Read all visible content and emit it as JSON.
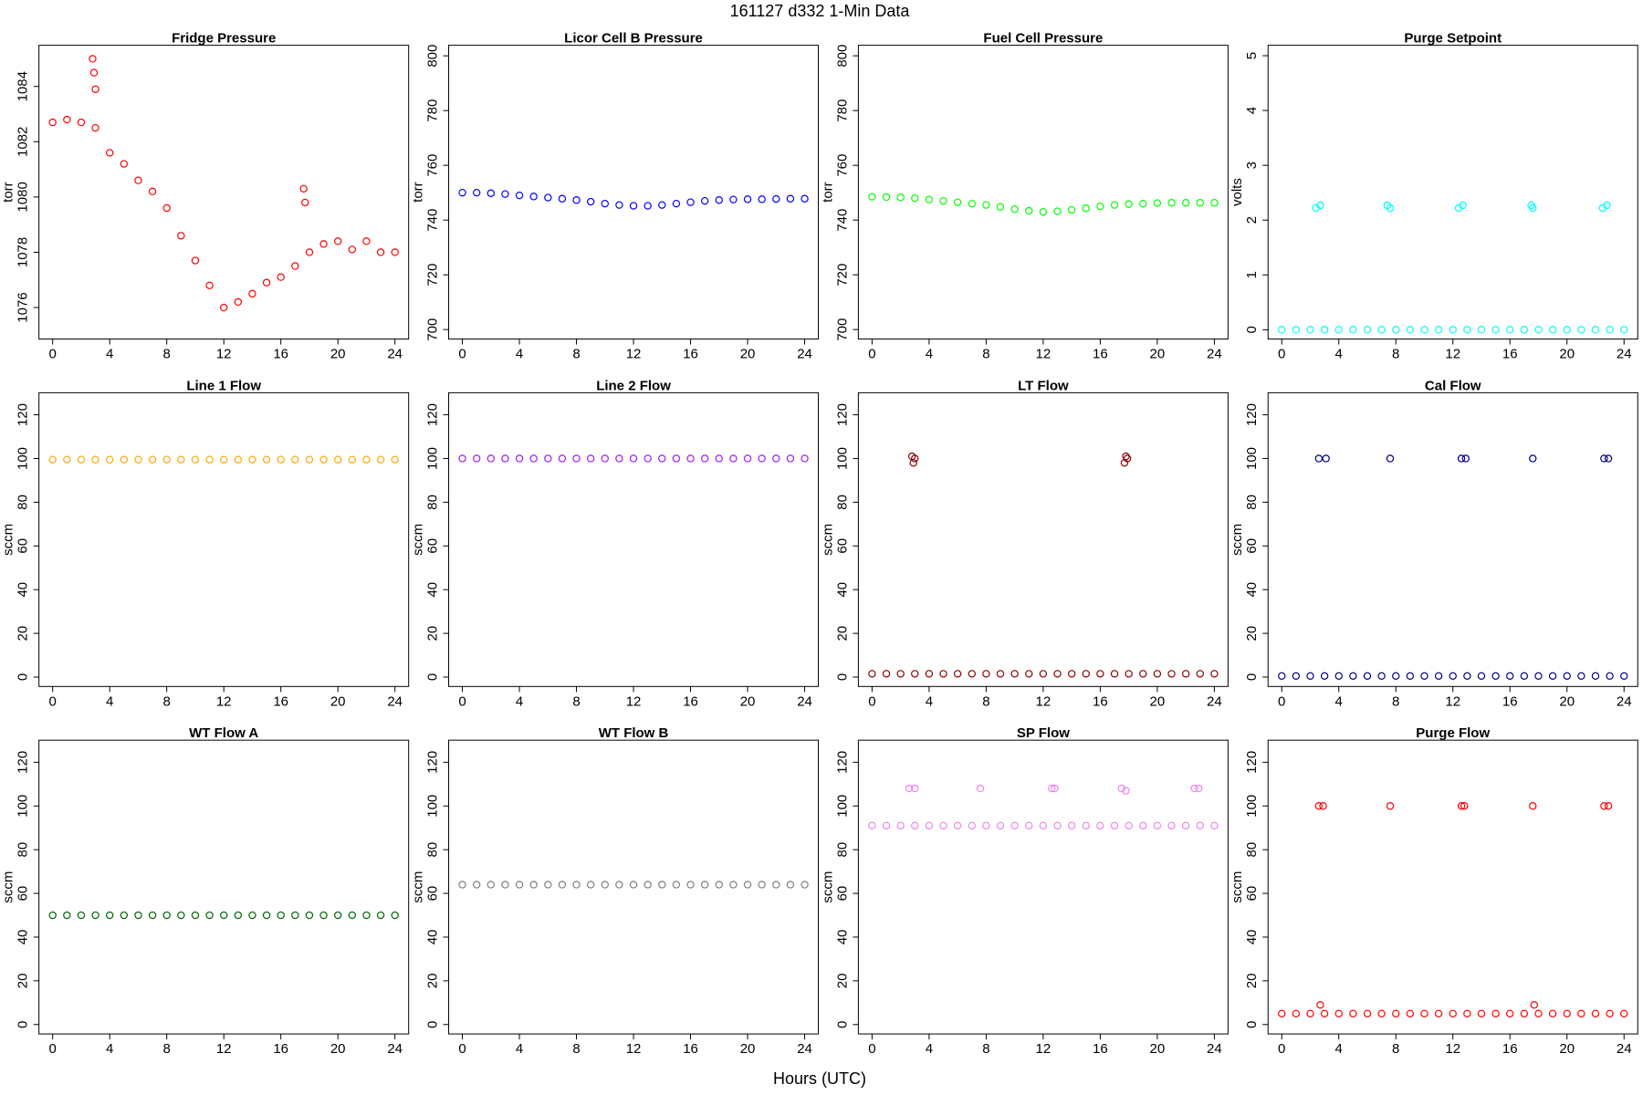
{
  "title": "161127   d332   1-Min Data",
  "xlabel": "Hours (UTC)",
  "chart_data": [
    {
      "type": "scatter",
      "title": "Fridge Pressure",
      "ylabel": "torr",
      "color": "#ff0000",
      "x": [
        0,
        1,
        2,
        3,
        4,
        5,
        6,
        7,
        8,
        9,
        10,
        11,
        12,
        13,
        14,
        15,
        16,
        17,
        18,
        19,
        20,
        21,
        22,
        23,
        24,
        2.8,
        2.9,
        3.0,
        17.6,
        17.7
      ],
      "values": [
        1082.7,
        1082.8,
        1082.7,
        1082.5,
        1081.6,
        1081.2,
        1080.6,
        1080.2,
        1079.6,
        1078.6,
        1077.7,
        1076.8,
        1076.0,
        1076.2,
        1076.5,
        1076.9,
        1077.1,
        1077.5,
        1078.0,
        1078.3,
        1078.4,
        1078.1,
        1078.4,
        1078.0,
        1078.0,
        1085.0,
        1084.5,
        1083.9,
        1080.3,
        1079.8
      ],
      "xlim": [
        -0.96,
        24.96
      ],
      "xticks": [
        0,
        4,
        8,
        12,
        16,
        20,
        24
      ],
      "ylim": [
        1074.86,
        1085.49
      ],
      "yticks": [
        1076,
        1078,
        1080,
        1082,
        1084
      ]
    },
    {
      "type": "scatter",
      "title": "Licor Cell B Pressure",
      "ylabel": "torr",
      "color": "#0000ff",
      "x": [
        0,
        1,
        2,
        3,
        4,
        5,
        6,
        7,
        8,
        9,
        10,
        11,
        12,
        13,
        14,
        15,
        16,
        17,
        18,
        19,
        20,
        21,
        22,
        23,
        24
      ],
      "values": [
        750,
        750,
        749.8,
        749.5,
        749,
        748.6,
        748.2,
        747.8,
        747.3,
        746.7,
        746,
        745.5,
        745.2,
        745.2,
        745.5,
        746,
        746.5,
        747,
        747.3,
        747.5,
        747.6,
        747.6,
        747.7,
        747.8,
        747.8
      ],
      "xlim": [
        -0.96,
        24.96
      ],
      "xticks": [
        0,
        4,
        8,
        12,
        16,
        20,
        24
      ],
      "ylim": [
        696.54,
        803.85
      ],
      "yticks": [
        700,
        720,
        740,
        760,
        780,
        800
      ]
    },
    {
      "type": "scatter",
      "title": "Fuel Cell Pressure",
      "ylabel": "torr",
      "color": "#00ff00",
      "x": [
        0,
        1,
        2,
        3,
        4,
        5,
        6,
        7,
        8,
        9,
        10,
        11,
        12,
        13,
        14,
        15,
        16,
        17,
        18,
        19,
        20,
        21,
        22,
        23,
        24
      ],
      "values": [
        748.5,
        748.4,
        748.3,
        748,
        747.5,
        747,
        746.5,
        746,
        745.5,
        744.8,
        744,
        743.4,
        743,
        743.2,
        743.7,
        744.3,
        745,
        745.5,
        745.8,
        746,
        746.2,
        746.3,
        746.3,
        746.3,
        746.3
      ],
      "xlim": [
        -0.96,
        24.96
      ],
      "xticks": [
        0,
        4,
        8,
        12,
        16,
        20,
        24
      ],
      "ylim": [
        696.54,
        803.85
      ],
      "yticks": [
        700,
        720,
        740,
        760,
        780,
        800
      ]
    },
    {
      "type": "scatter",
      "title": "Purge Setpoint",
      "ylabel": "volts",
      "color": "#00ffff",
      "x": [
        0,
        1,
        2,
        3,
        4,
        5,
        6,
        7,
        8,
        9,
        10,
        11,
        12,
        13,
        14,
        15,
        16,
        17,
        18,
        19,
        20,
        21,
        22,
        23,
        24,
        2.4,
        2.7,
        7.4,
        7.6,
        12.4,
        12.7,
        17.5,
        17.6,
        22.5,
        22.8
      ],
      "values": [
        0,
        0,
        0,
        0,
        0,
        0,
        0,
        0,
        0,
        0,
        0,
        0,
        0,
        0,
        0,
        0,
        0,
        0,
        0,
        0,
        0,
        0,
        0,
        0,
        0,
        2.22,
        2.27,
        2.27,
        2.22,
        2.22,
        2.27,
        2.27,
        2.22,
        2.22,
        2.27
      ],
      "xlim": [
        -0.96,
        24.96
      ],
      "xticks": [
        0,
        4,
        8,
        12,
        16,
        20,
        24
      ],
      "ylim": [
        -0.17,
        5.19
      ],
      "yticks": [
        0,
        1,
        2,
        3,
        4,
        5
      ]
    },
    {
      "type": "scatter",
      "title": "Line 1 Flow",
      "ylabel": "sccm",
      "color": "#ffa500",
      "x": [
        0,
        1,
        2,
        3,
        4,
        5,
        6,
        7,
        8,
        9,
        10,
        11,
        12,
        13,
        14,
        15,
        16,
        17,
        18,
        19,
        20,
        21,
        22,
        23,
        24
      ],
      "values": [
        99.5,
        99.5,
        99.5,
        99.5,
        99.5,
        99.5,
        99.5,
        99.5,
        99.5,
        99.5,
        99.5,
        99.5,
        99.5,
        99.5,
        99.5,
        99.5,
        99.5,
        99.5,
        99.5,
        99.5,
        99.5,
        99.5,
        99.5,
        99.5,
        99.5
      ],
      "xlim": [
        -0.96,
        24.96
      ],
      "xticks": [
        0,
        4,
        8,
        12,
        16,
        20,
        24
      ],
      "ylim": [
        -4.3,
        130.1
      ],
      "yticks": [
        0,
        20,
        40,
        60,
        80,
        100,
        120
      ]
    },
    {
      "type": "scatter",
      "title": "Line 2 Flow",
      "ylabel": "sccm",
      "color": "#a020f0",
      "x": [
        0,
        1,
        2,
        3,
        4,
        5,
        6,
        7,
        8,
        9,
        10,
        11,
        12,
        13,
        14,
        15,
        16,
        17,
        18,
        19,
        20,
        21,
        22,
        23,
        24
      ],
      "values": [
        100,
        100,
        100,
        100,
        100,
        100,
        100,
        100,
        100,
        100,
        100,
        100,
        100,
        100,
        100,
        100,
        100,
        100,
        100,
        100,
        100,
        100,
        100,
        100,
        100
      ],
      "xlim": [
        -0.96,
        24.96
      ],
      "xticks": [
        0,
        4,
        8,
        12,
        16,
        20,
        24
      ],
      "ylim": [
        -4.3,
        130.1
      ],
      "yticks": [
        0,
        20,
        40,
        60,
        80,
        100,
        120
      ]
    },
    {
      "type": "scatter",
      "title": "LT Flow",
      "ylabel": "sccm",
      "color": "#8b0000",
      "x": [
        0,
        1,
        2,
        3,
        4,
        5,
        6,
        7,
        8,
        9,
        10,
        11,
        12,
        13,
        14,
        15,
        16,
        17,
        18,
        19,
        20,
        21,
        22,
        23,
        24,
        2.8,
        2.9,
        3.0,
        17.7,
        17.8,
        17.9
      ],
      "values": [
        1.5,
        1.5,
        1.5,
        1.5,
        1.5,
        1.5,
        1.5,
        1.5,
        1.5,
        1.5,
        1.5,
        1.5,
        1.5,
        1.5,
        1.5,
        1.5,
        1.5,
        1.5,
        1.5,
        1.5,
        1.5,
        1.5,
        1.5,
        1.5,
        1.5,
        101,
        98,
        100,
        98,
        101,
        100
      ],
      "xlim": [
        -0.96,
        24.96
      ],
      "xticks": [
        0,
        4,
        8,
        12,
        16,
        20,
        24
      ],
      "ylim": [
        -4.3,
        130.1
      ],
      "yticks": [
        0,
        20,
        40,
        60,
        80,
        100,
        120
      ]
    },
    {
      "type": "scatter",
      "title": "Cal Flow",
      "ylabel": "sccm",
      "color": "#000080",
      "x": [
        0,
        1,
        2,
        3,
        4,
        5,
        6,
        7,
        8,
        9,
        10,
        11,
        12,
        13,
        14,
        15,
        16,
        17,
        18,
        19,
        20,
        21,
        22,
        23,
        24,
        2.6,
        3.1,
        7.6,
        12.6,
        12.9,
        17.6,
        22.6,
        22.9
      ],
      "values": [
        0.5,
        0.5,
        0.5,
        0.5,
        0.5,
        0.5,
        0.5,
        0.5,
        0.5,
        0.5,
        0.5,
        0.5,
        0.5,
        0.5,
        0.5,
        0.5,
        0.5,
        0.5,
        0.5,
        0.5,
        0.5,
        0.5,
        0.5,
        0.5,
        0.5,
        100,
        100,
        100,
        100,
        100,
        100,
        100,
        100
      ],
      "xlim": [
        -0.96,
        24.96
      ],
      "xticks": [
        0,
        4,
        8,
        12,
        16,
        20,
        24
      ],
      "ylim": [
        -4.3,
        130.1
      ],
      "yticks": [
        0,
        20,
        40,
        60,
        80,
        100,
        120
      ]
    },
    {
      "type": "scatter",
      "title": "WT Flow A",
      "ylabel": "sccm",
      "color": "#006400",
      "x": [
        0,
        1,
        2,
        3,
        4,
        5,
        6,
        7,
        8,
        9,
        10,
        11,
        12,
        13,
        14,
        15,
        16,
        17,
        18,
        19,
        20,
        21,
        22,
        23,
        24
      ],
      "values": [
        50,
        50,
        50,
        50,
        50,
        50,
        50,
        50,
        50,
        50,
        50,
        50,
        50,
        50,
        50,
        50,
        50,
        50,
        50,
        50,
        50,
        50,
        50,
        50,
        50
      ],
      "xlim": [
        -0.96,
        24.96
      ],
      "xticks": [
        0,
        4,
        8,
        12,
        16,
        20,
        24
      ],
      "ylim": [
        -4.3,
        130.1
      ],
      "yticks": [
        0,
        20,
        40,
        60,
        80,
        100,
        120
      ]
    },
    {
      "type": "scatter",
      "title": "WT Flow B",
      "ylabel": "sccm",
      "color": "#808080",
      "x": [
        0,
        1,
        2,
        3,
        4,
        5,
        6,
        7,
        8,
        9,
        10,
        11,
        12,
        13,
        14,
        15,
        16,
        17,
        18,
        19,
        20,
        21,
        22,
        23,
        24
      ],
      "values": [
        64,
        64,
        64,
        64,
        64,
        64,
        64,
        64,
        64,
        64,
        64,
        64,
        64,
        64,
        64,
        64,
        64,
        64,
        64,
        64,
        64,
        64,
        64,
        64,
        64
      ],
      "xlim": [
        -0.96,
        24.96
      ],
      "xticks": [
        0,
        4,
        8,
        12,
        16,
        20,
        24
      ],
      "ylim": [
        -4.3,
        130.1
      ],
      "yticks": [
        0,
        20,
        40,
        60,
        80,
        100,
        120
      ]
    },
    {
      "type": "scatter",
      "title": "SP Flow",
      "ylabel": "sccm",
      "color": "#ee82ee",
      "x": [
        0,
        1,
        2,
        3,
        4,
        5,
        6,
        7,
        8,
        9,
        10,
        11,
        12,
        13,
        14,
        15,
        16,
        17,
        18,
        19,
        20,
        21,
        22,
        23,
        24,
        2.6,
        3.0,
        7.6,
        12.6,
        12.8,
        17.5,
        17.8,
        22.6,
        22.9
      ],
      "values": [
        91,
        91,
        91,
        91,
        91,
        91,
        91,
        91,
        91,
        91,
        91,
        91,
        91,
        91,
        91,
        91,
        91,
        91,
        91,
        91,
        91,
        91,
        91,
        91,
        91,
        108,
        108,
        108,
        108,
        108,
        108,
        107,
        108,
        108
      ],
      "xlim": [
        -0.96,
        24.96
      ],
      "xticks": [
        0,
        4,
        8,
        12,
        16,
        20,
        24
      ],
      "ylim": [
        -4.3,
        130.1
      ],
      "yticks": [
        0,
        20,
        40,
        60,
        80,
        100,
        120
      ]
    },
    {
      "type": "scatter",
      "title": "Purge Flow",
      "ylabel": "sccm",
      "color": "#ff0000",
      "x": [
        0,
        1,
        2,
        3,
        4,
        5,
        6,
        7,
        8,
        9,
        10,
        11,
        12,
        13,
        14,
        15,
        16,
        17,
        18,
        19,
        20,
        21,
        22,
        23,
        24,
        2.6,
        2.9,
        7.6,
        12.6,
        12.8,
        17.6,
        22.6,
        22.9,
        2.7,
        17.7
      ],
      "values": [
        5,
        5,
        5,
        5,
        5,
        5,
        5,
        5,
        5,
        5,
        5,
        5,
        5,
        5,
        5,
        5,
        5,
        5,
        5,
        5,
        5,
        5,
        5,
        5,
        5,
        100,
        100,
        100,
        100,
        100,
        100,
        100,
        100,
        9,
        9
      ],
      "xlim": [
        -0.96,
        24.96
      ],
      "xticks": [
        0,
        4,
        8,
        12,
        16,
        20,
        24
      ],
      "ylim": [
        -4.3,
        130.1
      ],
      "yticks": [
        0,
        20,
        40,
        60,
        80,
        100,
        120
      ]
    }
  ]
}
